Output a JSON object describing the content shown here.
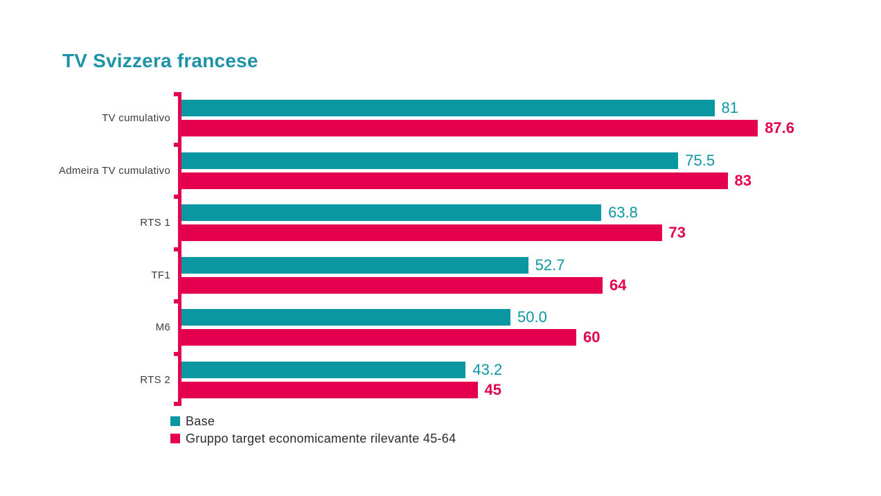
{
  "title": "TV Svizzera francese",
  "colors": {
    "teal": "#0a97a2",
    "red": "#e4004e",
    "title": "#1e93a8",
    "category_label": "#3c3c3c"
  },
  "legend": {
    "items": [
      {
        "label": "Base",
        "color": "#0a97a2"
      },
      {
        "label": "Gruppo target economicamente rilevante 45-64",
        "color": "#e4004e"
      }
    ]
  },
  "chart_data": {
    "type": "bar",
    "orientation": "horizontal",
    "title": "TV Svizzera francese",
    "categories": [
      "TV cumulativo",
      "Admeira TV cumulativo",
      "RTS 1",
      "TF1",
      "M6",
      "RTS 2"
    ],
    "series": [
      {
        "name": "Base",
        "color": "#0a97a2",
        "values": [
          81,
          75.5,
          63.8,
          52.7,
          50.0,
          43.2
        ],
        "labels": [
          "81",
          "75.5",
          "63.8",
          "52.7",
          "50.0",
          "43.2"
        ]
      },
      {
        "name": "Gruppo target economicamente rilevante 45-64",
        "color": "#e4004e",
        "values": [
          87.6,
          83,
          73,
          64,
          60,
          45
        ],
        "labels": [
          "87.6",
          "83",
          "73",
          "64",
          "60",
          "45"
        ]
      }
    ],
    "xlim": [
      0,
      100
    ],
    "grid": false,
    "value_labels": true,
    "legend_position": "bottom-left",
    "axis_color": "#e4004e"
  }
}
